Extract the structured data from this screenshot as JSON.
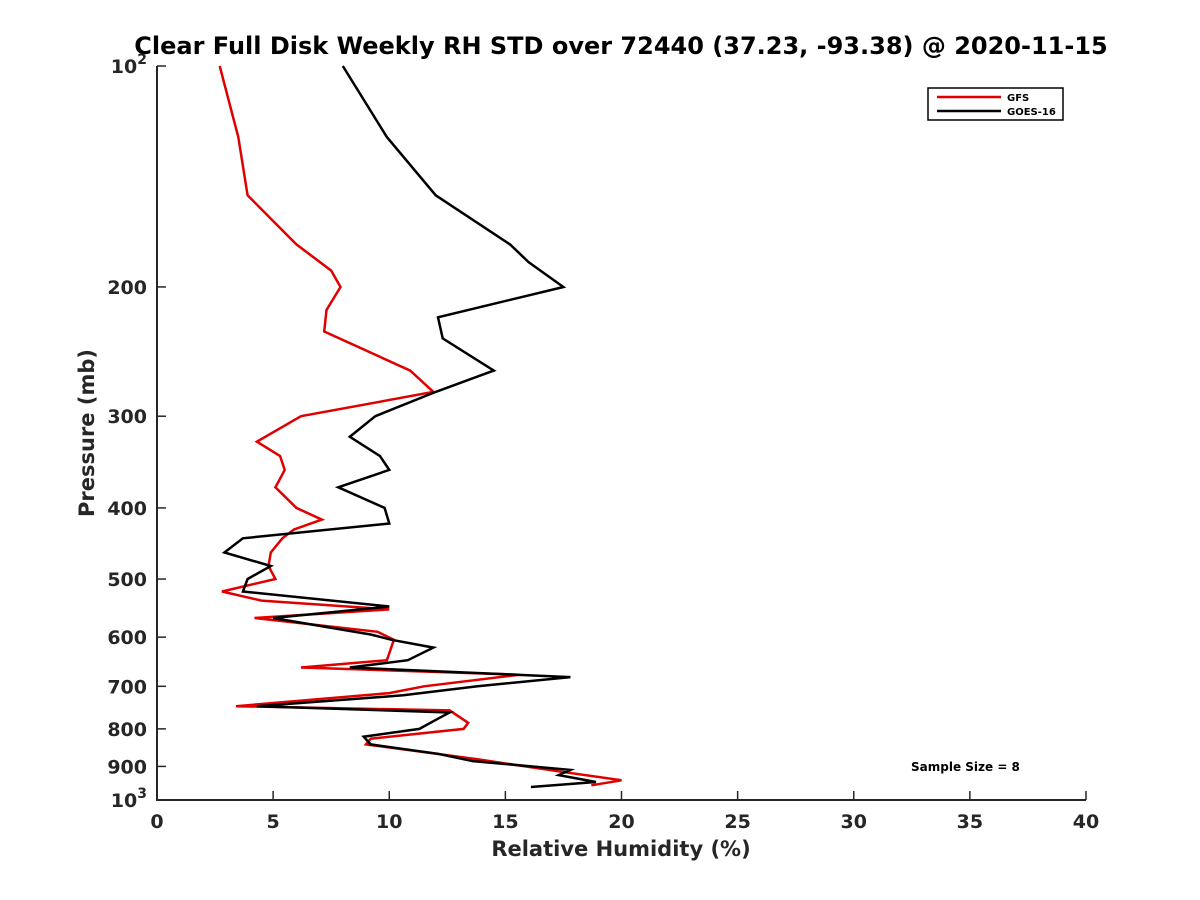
{
  "chart_data": {
    "type": "line",
    "title": "Clear Full Disk Weekly RH STD over 72440 (37.23, -93.38) @ 2020-11-15",
    "xlabel": "Relative Humidity (%)",
    "ylabel": "Pressure (mb)",
    "xlim": [
      0,
      40
    ],
    "ylim": [
      100,
      1000
    ],
    "y_scale": "log",
    "y_reversed": true,
    "x_ticks": [
      0,
      5,
      10,
      15,
      20,
      25,
      30,
      35,
      40
    ],
    "x_tick_labels": [
      "0",
      "5",
      "10",
      "15",
      "20",
      "25",
      "30",
      "35",
      "40"
    ],
    "y_ticks": [
      100,
      200,
      300,
      400,
      500,
      600,
      700,
      800,
      900,
      1000
    ],
    "y_tick_labels": [
      "10^2",
      "200",
      "300",
      "400",
      "500",
      "600",
      "700",
      "800",
      "900",
      "10^3"
    ],
    "grid": false,
    "legend_position": "top-right",
    "annotation": "Sample Size = 8",
    "series": [
      {
        "name": "GFS",
        "color": "#e00000",
        "points": [
          [
            2.7,
            100
          ],
          [
            3.5,
            125
          ],
          [
            3.9,
            150
          ],
          [
            6.0,
            175
          ],
          [
            7.5,
            190
          ],
          [
            7.9,
            200
          ],
          [
            7.3,
            215
          ],
          [
            7.2,
            230
          ],
          [
            10.9,
            260
          ],
          [
            11.9,
            278
          ],
          [
            6.2,
            300
          ],
          [
            4.3,
            325
          ],
          [
            5.3,
            340
          ],
          [
            5.5,
            355
          ],
          [
            5.3,
            365
          ],
          [
            5.1,
            375
          ],
          [
            6.0,
            400
          ],
          [
            7.1,
            415
          ],
          [
            5.9,
            428
          ],
          [
            5.4,
            440
          ],
          [
            4.9,
            460
          ],
          [
            4.8,
            480
          ],
          [
            5.1,
            500
          ],
          [
            2.8,
            520
          ],
          [
            4.5,
            535
          ],
          [
            10.0,
            550
          ],
          [
            4.2,
            565
          ],
          [
            9.5,
            590
          ],
          [
            10.2,
            605
          ],
          [
            9.9,
            645
          ],
          [
            6.2,
            660
          ],
          [
            15.6,
            675
          ],
          [
            11.5,
            700
          ],
          [
            10.0,
            715
          ],
          [
            3.4,
            745
          ],
          [
            12.6,
            755
          ],
          [
            13.4,
            785
          ],
          [
            13.2,
            800
          ],
          [
            9.2,
            825
          ],
          [
            9.0,
            840
          ],
          [
            13.8,
            880
          ],
          [
            17.4,
            915
          ],
          [
            20.0,
            940
          ],
          [
            18.7,
            955
          ]
        ]
      },
      {
        "name": "GOES-16",
        "color": "#000000",
        "points": [
          [
            8.0,
            100
          ],
          [
            9.9,
            125
          ],
          [
            12.0,
            150
          ],
          [
            15.2,
            175
          ],
          [
            16.0,
            185
          ],
          [
            17.5,
            200
          ],
          [
            12.1,
            220
          ],
          [
            12.3,
            235
          ],
          [
            14.5,
            260
          ],
          [
            12.0,
            278
          ],
          [
            9.4,
            300
          ],
          [
            8.3,
            320
          ],
          [
            9.6,
            340
          ],
          [
            10.0,
            355
          ],
          [
            7.8,
            375
          ],
          [
            9.8,
            400
          ],
          [
            10.0,
            420
          ],
          [
            3.7,
            440
          ],
          [
            2.9,
            460
          ],
          [
            4.9,
            480
          ],
          [
            3.9,
            500
          ],
          [
            3.7,
            520
          ],
          [
            10.0,
            545
          ],
          [
            5.0,
            565
          ],
          [
            9.2,
            595
          ],
          [
            10.1,
            605
          ],
          [
            11.9,
            620
          ],
          [
            10.8,
            645
          ],
          [
            8.3,
            660
          ],
          [
            17.8,
            680
          ],
          [
            13.8,
            700
          ],
          [
            10.6,
            720
          ],
          [
            4.3,
            745
          ],
          [
            12.6,
            760
          ],
          [
            12.1,
            775
          ],
          [
            11.3,
            800
          ],
          [
            8.9,
            820
          ],
          [
            9.2,
            840
          ],
          [
            12.1,
            865
          ],
          [
            13.6,
            885
          ],
          [
            17.8,
            910
          ],
          [
            17.3,
            925
          ],
          [
            18.9,
            945
          ],
          [
            16.1,
            960
          ]
        ]
      }
    ]
  }
}
